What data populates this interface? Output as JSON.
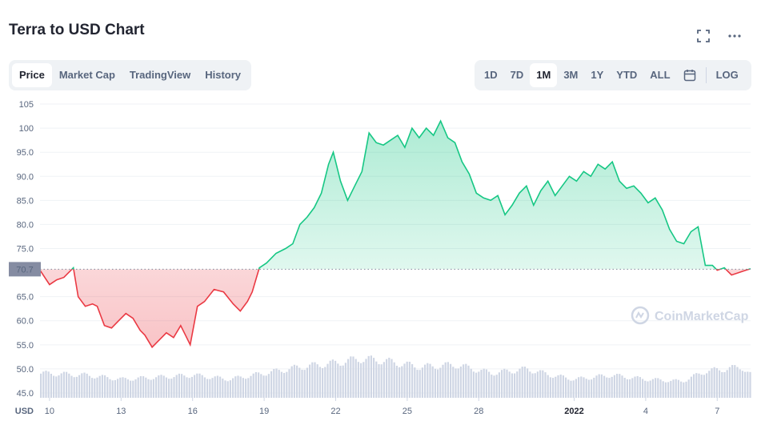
{
  "header": {
    "title": "Terra to USD Chart"
  },
  "icons": {
    "fullscreen": "fullscreen-icon",
    "more": "more-icon",
    "calendar": "calendar-icon",
    "watermark": "coinmarketcap-logo-icon"
  },
  "tabs": [
    {
      "label": "Price",
      "active": true
    },
    {
      "label": "Market Cap",
      "active": false
    },
    {
      "label": "TradingView",
      "active": false
    },
    {
      "label": "History",
      "active": false
    }
  ],
  "ranges": [
    {
      "label": "1D",
      "active": false
    },
    {
      "label": "7D",
      "active": false
    },
    {
      "label": "1M",
      "active": true
    },
    {
      "label": "3M",
      "active": false
    },
    {
      "label": "1Y",
      "active": false
    },
    {
      "label": "YTD",
      "active": false
    },
    {
      "label": "ALL",
      "active": false
    }
  ],
  "log_label": "LOG",
  "watermark": "CoinMarketCap",
  "colors": {
    "up": "#16c784",
    "down": "#ea3943",
    "volume": "#cfd6e4",
    "grid": "#eff2f5",
    "reference": "#808a9d"
  },
  "chart_data": {
    "type": "line",
    "ylabel": "USD",
    "price_axis_ticks": [
      105,
      100,
      95.0,
      90.0,
      85.0,
      80.0,
      75.0,
      65.0,
      60.0,
      55.0,
      50.0,
      45.0
    ],
    "price_tick_labels": [
      "105",
      "100",
      "95.0",
      "90.0",
      "85.0",
      "80.0",
      "75.0",
      "65.0",
      "60.0",
      "55.0",
      "50.0",
      "45.0"
    ],
    "ylim": [
      44,
      107
    ],
    "x_ticks": [
      {
        "day": 10,
        "label": "10",
        "bold": false
      },
      {
        "day": 13,
        "label": "13",
        "bold": false
      },
      {
        "day": 16,
        "label": "16",
        "bold": false
      },
      {
        "day": 19,
        "label": "19",
        "bold": false
      },
      {
        "day": 22,
        "label": "22",
        "bold": false
      },
      {
        "day": 25,
        "label": "25",
        "bold": false
      },
      {
        "day": 28,
        "label": "28",
        "bold": false
      },
      {
        "day": 32,
        "label": "2022",
        "bold": true
      },
      {
        "day": 35,
        "label": "4",
        "bold": false
      },
      {
        "day": 38,
        "label": "7",
        "bold": false
      }
    ],
    "xlim": [
      9.6,
      39.4
    ],
    "reference_price": 70.7,
    "reference_label": "70.7",
    "series": [
      {
        "x": [
          9.6,
          10.0,
          10.3,
          10.6,
          11.0,
          11.2,
          11.5,
          11.8,
          12.0,
          12.3,
          12.6,
          12.9,
          13.2,
          13.5,
          13.8,
          14.0,
          14.3,
          14.6,
          14.9,
          15.2,
          15.5,
          15.7,
          15.9,
          16.2,
          16.5,
          16.9,
          17.3,
          17.7,
          18.0,
          18.3,
          18.5,
          18.8,
          19.1,
          19.5,
          19.9,
          20.2,
          20.5,
          20.8,
          21.1,
          21.4,
          21.7,
          21.9,
          22.2,
          22.5,
          22.8,
          23.1,
          23.4,
          23.7,
          24.0,
          24.3,
          24.6,
          24.9,
          25.2,
          25.5,
          25.8,
          26.1,
          26.4,
          26.7,
          27.0,
          27.3,
          27.6,
          27.9,
          28.2,
          28.5,
          28.8,
          29.1,
          29.4,
          29.7,
          30.0,
          30.3,
          30.6,
          30.9,
          31.2,
          31.5,
          31.8,
          32.1,
          32.4,
          32.7,
          33.0,
          33.3,
          33.6,
          33.9,
          34.2,
          34.5,
          34.8,
          35.1,
          35.4,
          35.7,
          36.0,
          36.3,
          36.6,
          36.9,
          37.2,
          37.5,
          37.8,
          38.0,
          38.3,
          38.6,
          38.9,
          39.2,
          39.4
        ],
        "y": [
          70.5,
          67.5,
          68.5,
          69.0,
          71.0,
          65.0,
          63.0,
          63.5,
          63.0,
          59.0,
          58.5,
          60.0,
          61.5,
          60.5,
          58.0,
          57.0,
          54.5,
          56.0,
          57.5,
          56.5,
          59.0,
          57.0,
          55.0,
          63.0,
          64.0,
          66.5,
          66.0,
          63.5,
          62.0,
          64.0,
          66.0,
          71.0,
          72.0,
          74.0,
          75.0,
          76.0,
          80.0,
          81.5,
          83.5,
          86.5,
          92.5,
          95.0,
          89.0,
          85.0,
          88.0,
          91.0,
          99.0,
          97.0,
          96.5,
          97.5,
          98.5,
          96.0,
          100.0,
          98.0,
          100.0,
          98.5,
          101.5,
          98.0,
          97.0,
          93.0,
          90.5,
          86.5,
          85.5,
          85.0,
          86.0,
          82.0,
          84.0,
          86.5,
          88.0,
          84.0,
          87.0,
          89.0,
          86.0,
          88.0,
          90.0,
          89.0,
          91.0,
          90.0,
          92.5,
          91.5,
          93.0,
          89.0,
          87.5,
          88.0,
          86.5,
          84.5,
          85.5,
          83.0,
          79.0,
          76.5,
          76.0,
          78.5,
          79.5,
          71.5,
          71.5,
          70.5,
          71.0,
          69.5,
          70.0,
          70.5,
          70.8
        ]
      }
    ],
    "volume": {
      "day": [
        9.6,
        11.5,
        13.0,
        14.5,
        16.0,
        17.5,
        19.0,
        20.5,
        22.0,
        23.0,
        24.0,
        25.5,
        27.0,
        28.5,
        30.0,
        31.0,
        32.0,
        33.5,
        35.0,
        36.5,
        37.5,
        38.3,
        39.0,
        39.4
      ],
      "relative": [
        0.6,
        0.55,
        0.45,
        0.5,
        0.55,
        0.45,
        0.6,
        0.75,
        0.85,
        0.95,
        0.9,
        0.75,
        0.8,
        0.6,
        0.7,
        0.55,
        0.45,
        0.55,
        0.45,
        0.4,
        0.65,
        0.7,
        0.75,
        0.55
      ]
    }
  }
}
